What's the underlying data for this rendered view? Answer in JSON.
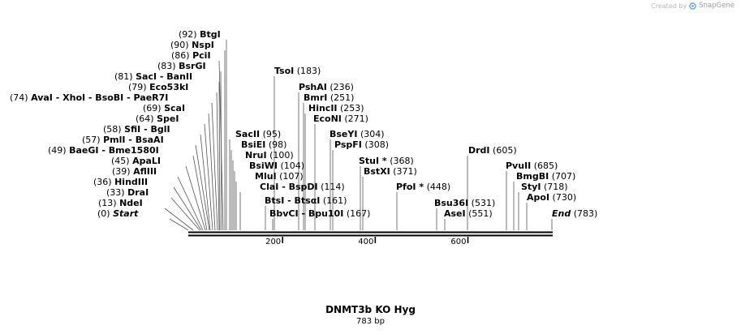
{
  "credit": {
    "prefix": "Created by",
    "brand": "SnapGene",
    "icon": "snapgene-logo-icon"
  },
  "map": {
    "title": "DNMT3b KO Hyg",
    "length_label": "783 bp",
    "length_bp": 783,
    "axis_ticks": [
      200,
      400,
      600
    ],
    "features": [
      {
        "name": "Start",
        "pos": "(0)",
        "bp": 0,
        "special": true
      },
      {
        "name": "NdeI",
        "pos": "(13)",
        "bp": 13
      },
      {
        "name": "DraI",
        "pos": "(33)",
        "bp": 33
      },
      {
        "name": "HindIII",
        "pos": "(36)",
        "bp": 36
      },
      {
        "name": "AflIII",
        "pos": "(39)",
        "bp": 39
      },
      {
        "name": "ApaLI",
        "pos": "(45)",
        "bp": 45
      },
      {
        "name": "BaeGI - Bme1580I",
        "pos": "(49)",
        "bp": 49,
        "pos_first": true
      },
      {
        "name": "PmlI - BsaAI",
        "pos": "(57)",
        "bp": 57
      },
      {
        "name": "SfiI - BglI",
        "pos": "(58)",
        "bp": 58
      },
      {
        "name": "SpeI",
        "pos": "(64)",
        "bp": 64
      },
      {
        "name": "ScaI",
        "pos": "(69)",
        "bp": 69
      },
      {
        "name": "AvaI - XhoI - BsoBI - PaeR7I",
        "pos": "(74)",
        "bp": 74
      },
      {
        "name": "Eco53kI",
        "pos": "(79)",
        "bp": 79
      },
      {
        "name": "SacI - BanII",
        "pos": "(81)",
        "bp": 81
      },
      {
        "name": "BsrGI",
        "pos": "(83)",
        "bp": 83
      },
      {
        "name": "PciI",
        "pos": "(86)",
        "bp": 86
      },
      {
        "name": "NspI",
        "pos": "(90)",
        "bp": 90
      },
      {
        "name": "BtgI",
        "pos": "(92)",
        "bp": 92
      },
      {
        "name": "SacII",
        "pos": "(95)",
        "bp": 95
      },
      {
        "name": "BsiEI",
        "pos": "(98)",
        "bp": 98
      },
      {
        "name": "NruI",
        "pos": "(100)",
        "bp": 100
      },
      {
        "name": "BsiWI",
        "pos": "(104)",
        "bp": 104
      },
      {
        "name": "MluI",
        "pos": "(107)",
        "bp": 107
      },
      {
        "name": "ClaI - BspDI",
        "pos": "(114)",
        "bp": 114
      },
      {
        "name": "BtsI - BtsαI",
        "pos": "(161)",
        "bp": 161
      },
      {
        "name": "BbvCI - Bpu10I",
        "pos": "(167)",
        "bp": 167
      },
      {
        "name": "TsoI",
        "pos": "(183)",
        "bp": 183
      },
      {
        "name": "PshAI",
        "pos": "(236)",
        "bp": 236
      },
      {
        "name": "BmrI",
        "pos": "(251)",
        "bp": 251
      },
      {
        "name": "HincII",
        "pos": "(253)",
        "bp": 253
      },
      {
        "name": "EcoNI",
        "pos": "(271)",
        "bp": 271
      },
      {
        "name": "BseYI",
        "pos": "(304)",
        "bp": 304
      },
      {
        "name": "PspFI",
        "pos": "(308)",
        "bp": 308
      },
      {
        "name": "StuI *",
        "pos": "(368)",
        "bp": 368
      },
      {
        "name": "BstXI",
        "pos": "(371)",
        "bp": 371
      },
      {
        "name": "PfoI *",
        "pos": "(448)",
        "bp": 448
      },
      {
        "name": "Bsu36I",
        "pos": "(531)",
        "bp": 531
      },
      {
        "name": "AseI",
        "pos": "(551)",
        "bp": 551
      },
      {
        "name": "DrdI",
        "pos": "(605)",
        "bp": 605
      },
      {
        "name": "PvuII",
        "pos": "(685)",
        "bp": 685
      },
      {
        "name": "BmgBI",
        "pos": "(707)",
        "bp": 707
      },
      {
        "name": "StyI",
        "pos": "(718)",
        "bp": 718
      },
      {
        "name": "ApoI",
        "pos": "(730)",
        "bp": 730
      },
      {
        "name": "End",
        "pos": "(783)",
        "bp": 783,
        "special": true
      }
    ]
  }
}
